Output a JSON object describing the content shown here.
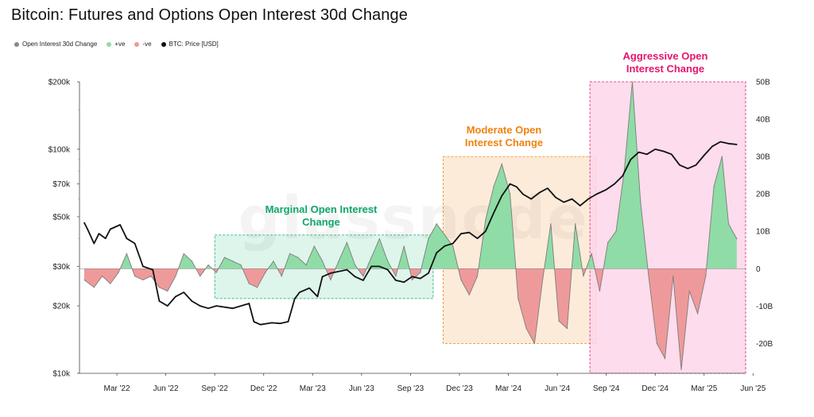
{
  "title": "Bitcoin: Futures and Options Open Interest 30d Change",
  "legend": [
    {
      "label": "Open Interest 30d Change",
      "color": "#8a8a8a"
    },
    {
      "label": "+ve",
      "color": "#8fdca6"
    },
    {
      "label": "-ve",
      "color": "#ef9a9a"
    },
    {
      "label": "BTC: Price [USD]",
      "color": "#111111"
    }
  ],
  "watermark": "glassnode",
  "chart_data": {
    "type": "area",
    "x_start": "2022-01",
    "x_end": "2025-06",
    "x_ticks": [
      "Mar '22",
      "Jun '22",
      "Sep '22",
      "Dec '22",
      "Mar '23",
      "Jun '23",
      "Sep '23",
      "Dec '23",
      "Mar '24",
      "Jun '24",
      "Sep '24",
      "Dec '24",
      "Mar '25",
      "Jun '25"
    ],
    "y_left": {
      "label": "",
      "scale": "log",
      "ticks": [
        "$200k",
        "$100k",
        "$70k",
        "$50k",
        "$30k",
        "$20k",
        "$10k"
      ],
      "range": [
        10000,
        200000
      ]
    },
    "y_right": {
      "label": "",
      "scale": "linear",
      "ticks": [
        "50B",
        "40B",
        "30B",
        "20B",
        "10B",
        "0",
        "-10B",
        "-20B"
      ],
      "range": [
        -28,
        50
      ]
    },
    "series": [
      {
        "name": "BTC: Price [USD]",
        "axis": "left",
        "color": "#111111",
        "points": [
          [
            0,
            47000
          ],
          [
            0.2,
            44000
          ],
          [
            0.6,
            38000
          ],
          [
            0.9,
            42000
          ],
          [
            1.3,
            40000
          ],
          [
            1.6,
            44000
          ],
          [
            2.2,
            46000
          ],
          [
            2.6,
            40000
          ],
          [
            3.1,
            38000
          ],
          [
            3.6,
            30000
          ],
          [
            4.2,
            29000
          ],
          [
            4.6,
            21000
          ],
          [
            5.1,
            20000
          ],
          [
            5.6,
            22000
          ],
          [
            6.1,
            23000
          ],
          [
            6.6,
            21000
          ],
          [
            7.1,
            20000
          ],
          [
            7.6,
            19500
          ],
          [
            8.1,
            20000
          ],
          [
            9.1,
            19500
          ],
          [
            10.1,
            20500
          ],
          [
            10.4,
            17000
          ],
          [
            10.8,
            16500
          ],
          [
            11.5,
            16800
          ],
          [
            12.0,
            16700
          ],
          [
            12.5,
            17000
          ],
          [
            12.9,
            21500
          ],
          [
            13.2,
            23000
          ],
          [
            13.8,
            24000
          ],
          [
            14.3,
            22000
          ],
          [
            14.6,
            27000
          ],
          [
            15.1,
            28000
          ],
          [
            16.1,
            29000
          ],
          [
            16.6,
            27000
          ],
          [
            17.1,
            26000
          ],
          [
            17.6,
            30000
          ],
          [
            18.1,
            30000
          ],
          [
            18.6,
            29000
          ],
          [
            19.1,
            26000
          ],
          [
            19.6,
            25500
          ],
          [
            20.1,
            27000
          ],
          [
            20.6,
            26500
          ],
          [
            21.1,
            28000
          ],
          [
            21.6,
            34500
          ],
          [
            22.1,
            37000
          ],
          [
            22.6,
            38000
          ],
          [
            23.1,
            42000
          ],
          [
            23.6,
            42500
          ],
          [
            24.1,
            40000
          ],
          [
            24.6,
            43000
          ],
          [
            25.1,
            52000
          ],
          [
            25.6,
            62000
          ],
          [
            26.1,
            70000
          ],
          [
            26.5,
            68000
          ],
          [
            26.9,
            63000
          ],
          [
            27.4,
            60000
          ],
          [
            27.9,
            64000
          ],
          [
            28.4,
            67000
          ],
          [
            28.9,
            61000
          ],
          [
            29.4,
            58000
          ],
          [
            29.9,
            60000
          ],
          [
            30.4,
            56000
          ],
          [
            30.9,
            60000
          ],
          [
            31.4,
            63000
          ],
          [
            32.0,
            66000
          ],
          [
            32.5,
            70000
          ],
          [
            33.0,
            76000
          ],
          [
            33.5,
            90000
          ],
          [
            34.0,
            97000
          ],
          [
            34.5,
            95000
          ],
          [
            35.0,
            100000
          ],
          [
            35.5,
            98000
          ],
          [
            36.0,
            95000
          ],
          [
            36.5,
            85000
          ],
          [
            37.0,
            82000
          ],
          [
            37.5,
            85000
          ],
          [
            38.0,
            94000
          ],
          [
            38.5,
            103000
          ],
          [
            39.0,
            108000
          ],
          [
            39.5,
            106000
          ],
          [
            40.0,
            105000
          ]
        ]
      },
      {
        "name": "Open Interest 30d Change",
        "axis": "right",
        "unit": "B",
        "positive_color": "#8fdca6",
        "negative_color": "#ef9a9a",
        "points": [
          [
            0,
            -3
          ],
          [
            0.6,
            -5
          ],
          [
            1.1,
            -2
          ],
          [
            1.6,
            -4
          ],
          [
            2.1,
            -1
          ],
          [
            2.6,
            4
          ],
          [
            3.1,
            -2
          ],
          [
            3.6,
            -3
          ],
          [
            4.1,
            -2
          ],
          [
            4.6,
            -5
          ],
          [
            5.1,
            -6
          ],
          [
            5.6,
            -2
          ],
          [
            6.1,
            4
          ],
          [
            6.6,
            2
          ],
          [
            7.1,
            -2
          ],
          [
            7.6,
            1
          ],
          [
            8.1,
            -1
          ],
          [
            8.6,
            3
          ],
          [
            9.1,
            2
          ],
          [
            9.6,
            1
          ],
          [
            10.1,
            -4
          ],
          [
            10.6,
            -5
          ],
          [
            11.1,
            -1
          ],
          [
            11.6,
            2
          ],
          [
            12.1,
            -2
          ],
          [
            12.6,
            4
          ],
          [
            13.1,
            3
          ],
          [
            13.6,
            1
          ],
          [
            14.1,
            6
          ],
          [
            14.6,
            2
          ],
          [
            15.1,
            -3
          ],
          [
            15.6,
            2
          ],
          [
            16.1,
            7
          ],
          [
            16.6,
            1
          ],
          [
            17.1,
            -2
          ],
          [
            17.6,
            3
          ],
          [
            18.1,
            8
          ],
          [
            18.6,
            2
          ],
          [
            19.1,
            -2
          ],
          [
            19.6,
            6
          ],
          [
            20.1,
            -3
          ],
          [
            20.6,
            -1
          ],
          [
            21.1,
            8
          ],
          [
            21.6,
            12
          ],
          [
            22.1,
            9
          ],
          [
            22.6,
            6
          ],
          [
            23.1,
            -3
          ],
          [
            23.6,
            -7
          ],
          [
            24.1,
            -2
          ],
          [
            24.6,
            13
          ],
          [
            25.1,
            22
          ],
          [
            25.6,
            28
          ],
          [
            26.1,
            20
          ],
          [
            26.6,
            -8
          ],
          [
            27.1,
            -16
          ],
          [
            27.6,
            -20
          ],
          [
            28.1,
            -3
          ],
          [
            28.6,
            12
          ],
          [
            29.1,
            -14
          ],
          [
            29.6,
            -16
          ],
          [
            30.1,
            12
          ],
          [
            30.6,
            -2
          ],
          [
            31.1,
            4
          ],
          [
            31.6,
            -6
          ],
          [
            32.1,
            7
          ],
          [
            32.6,
            10
          ],
          [
            33.1,
            26
          ],
          [
            33.6,
            50
          ],
          [
            34.1,
            18
          ],
          [
            34.6,
            -2
          ],
          [
            35.1,
            -20
          ],
          [
            35.6,
            -24
          ],
          [
            36.1,
            -2
          ],
          [
            36.6,
            -27
          ],
          [
            37.1,
            -6
          ],
          [
            37.6,
            -12
          ],
          [
            38.1,
            -2
          ],
          [
            38.6,
            22
          ],
          [
            39.1,
            30
          ],
          [
            39.5,
            12
          ],
          [
            40.0,
            8
          ]
        ]
      }
    ],
    "annotations": [
      {
        "label": "Marginal Open Interest Change",
        "from": "Sep '22",
        "to": "Oct '23",
        "value_range": [
          "-8B",
          "9B"
        ],
        "color": "#0fa86a",
        "fill": "#d7f3e7"
      },
      {
        "label": "Moderate Open Interest Change",
        "from": "Nov '23",
        "to": "Aug '24",
        "value_range": [
          "-20B",
          "30B"
        ],
        "color": "#f0820f",
        "fill": "#fde7d3"
      },
      {
        "label": "Aggressive Open Interest Change",
        "from": "Aug '24",
        "to": "Jun '25",
        "value_range": [
          "-28B",
          "50B"
        ],
        "color": "#e4156f",
        "fill": "#fbd6ea"
      }
    ]
  }
}
